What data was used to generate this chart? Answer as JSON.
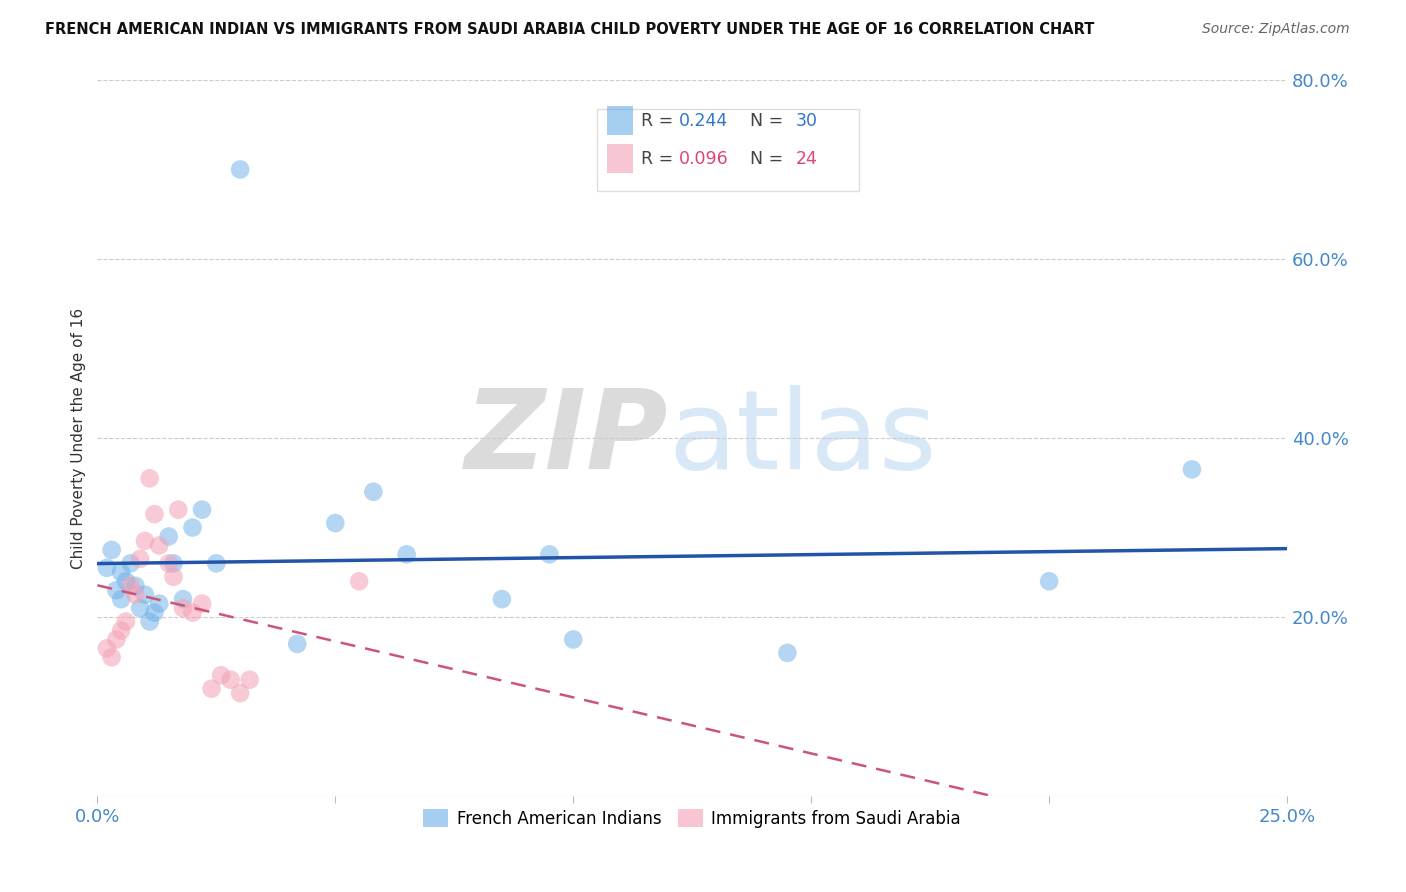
{
  "title": "FRENCH AMERICAN INDIAN VS IMMIGRANTS FROM SAUDI ARABIA CHILD POVERTY UNDER THE AGE OF 16 CORRELATION CHART",
  "source": "Source: ZipAtlas.com",
  "ylabel": "Child Poverty Under the Age of 16",
  "xlim": [
    0.0,
    0.25
  ],
  "ylim": [
    0.0,
    0.8
  ],
  "legend1_R": "0.244",
  "legend1_N": "30",
  "legend2_R": "0.096",
  "legend2_N": "24",
  "blue_color": "#6aaee8",
  "pink_color": "#f4a0b5",
  "blue_line_color": "#2255aa",
  "pink_line_color": "#cc5577",
  "blue_scatter_x": [
    0.002,
    0.003,
    0.004,
    0.005,
    0.005,
    0.006,
    0.007,
    0.008,
    0.009,
    0.01,
    0.011,
    0.012,
    0.013,
    0.015,
    0.016,
    0.018,
    0.02,
    0.022,
    0.025,
    0.03,
    0.042,
    0.05,
    0.058,
    0.065,
    0.085,
    0.095,
    0.1,
    0.145,
    0.2,
    0.23
  ],
  "blue_scatter_y": [
    0.255,
    0.275,
    0.23,
    0.25,
    0.22,
    0.24,
    0.26,
    0.235,
    0.21,
    0.225,
    0.195,
    0.205,
    0.215,
    0.29,
    0.26,
    0.22,
    0.3,
    0.32,
    0.26,
    0.7,
    0.17,
    0.305,
    0.34,
    0.27,
    0.22,
    0.27,
    0.175,
    0.16,
    0.24,
    0.365
  ],
  "pink_scatter_x": [
    0.002,
    0.003,
    0.004,
    0.005,
    0.006,
    0.007,
    0.008,
    0.009,
    0.01,
    0.011,
    0.012,
    0.013,
    0.015,
    0.016,
    0.017,
    0.018,
    0.02,
    0.022,
    0.024,
    0.026,
    0.028,
    0.03,
    0.032,
    0.055
  ],
  "pink_scatter_y": [
    0.165,
    0.155,
    0.175,
    0.185,
    0.195,
    0.235,
    0.225,
    0.265,
    0.285,
    0.355,
    0.315,
    0.28,
    0.26,
    0.245,
    0.32,
    0.21,
    0.205,
    0.215,
    0.12,
    0.135,
    0.13,
    0.115,
    0.13,
    0.24
  ]
}
